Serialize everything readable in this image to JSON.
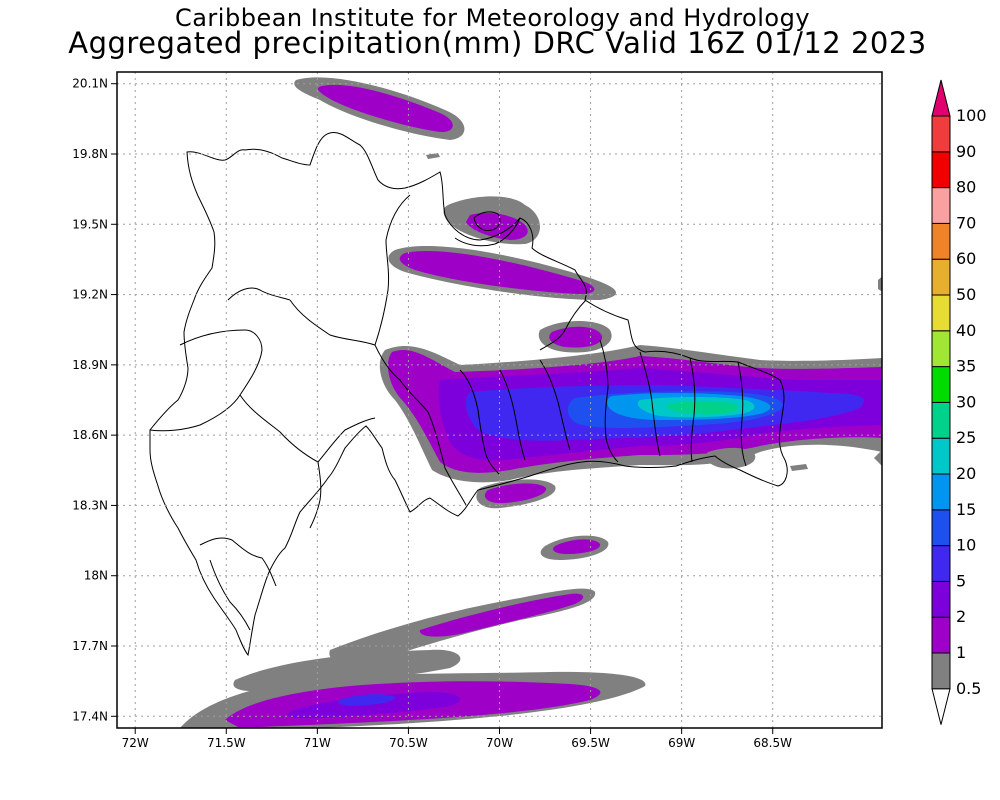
{
  "header": {
    "line1": "Caribbean Institute for Meteorology and Hydrology",
    "line2": "Aggregated precipitation(mm) DRC Valid 16Z 01/12 2023"
  },
  "map": {
    "lon_range": [
      -72.1,
      -67.9
    ],
    "lat_range": [
      17.35,
      20.15
    ],
    "lon_ticks": [
      {
        "value": -72.0,
        "label": "72W"
      },
      {
        "value": -71.5,
        "label": "71.5W"
      },
      {
        "value": -71.0,
        "label": "71W"
      },
      {
        "value": -70.5,
        "label": "70.5W"
      },
      {
        "value": -70.0,
        "label": "70W"
      },
      {
        "value": -69.5,
        "label": "69.5W"
      },
      {
        "value": -69.0,
        "label": "69W"
      },
      {
        "value": -68.5,
        "label": "68.5W"
      }
    ],
    "lat_ticks": [
      {
        "value": 20.1,
        "label": "20.1N"
      },
      {
        "value": 19.8,
        "label": "19.8N"
      },
      {
        "value": 19.5,
        "label": "19.5N"
      },
      {
        "value": 19.2,
        "label": "19.2N"
      },
      {
        "value": 18.9,
        "label": "18.9N"
      },
      {
        "value": 18.6,
        "label": "18.6N"
      },
      {
        "value": 18.3,
        "label": "18.3N"
      },
      {
        "value": 18.0,
        "label": "18N"
      },
      {
        "value": 17.7,
        "label": "17.7N"
      },
      {
        "value": 17.4,
        "label": "17.4N"
      }
    ],
    "grid": true
  },
  "colorbar": {
    "levels": [
      {
        "label": "0.5",
        "color": "#ffffff"
      },
      {
        "label": "1",
        "color": "#808080"
      },
      {
        "label": "2",
        "color": "#9e00c8"
      },
      {
        "label": "5",
        "color": "#7d00dc"
      },
      {
        "label": "10",
        "color": "#4128f0"
      },
      {
        "label": "15",
        "color": "#1e50f0"
      },
      {
        "label": "20",
        "color": "#0096f0"
      },
      {
        "label": "25",
        "color": "#00c8c8"
      },
      {
        "label": "30",
        "color": "#00d28c"
      },
      {
        "label": "35",
        "color": "#00dc00"
      },
      {
        "label": "40",
        "color": "#a0e632"
      },
      {
        "label": "50",
        "color": "#e6dc32"
      },
      {
        "label": "60",
        "color": "#e6af2d"
      },
      {
        "label": "70",
        "color": "#f08228"
      },
      {
        "label": "80",
        "color": "#faa0a0"
      },
      {
        "label": "90",
        "color": "#f00000"
      },
      {
        "label": "100",
        "color": "#f03c3c"
      }
    ],
    "over_color": "#e0006e"
  }
}
